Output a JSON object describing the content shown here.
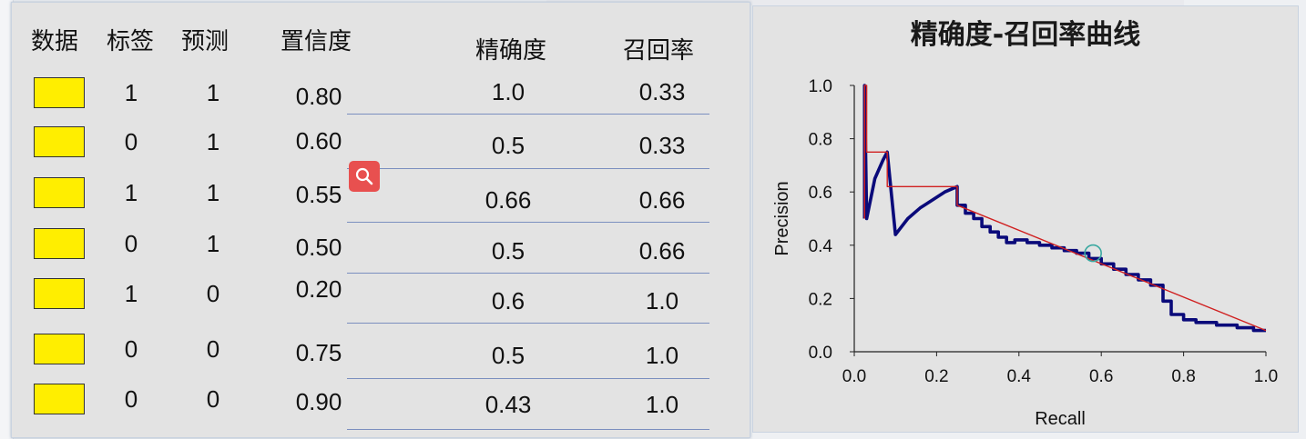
{
  "table": {
    "headers": [
      "数据",
      "标签",
      "预测",
      "置信度",
      "精确度",
      "召回率"
    ],
    "rows": [
      {
        "label": "1",
        "pred": "1",
        "conf": "0.80",
        "precision": "1.0",
        "recall": "0.33"
      },
      {
        "label": "0",
        "pred": "1",
        "conf": "0.60",
        "precision": "0.5",
        "recall": "0.33"
      },
      {
        "label": "1",
        "pred": "1",
        "conf": "0.55",
        "precision": "0.66",
        "recall": "0.66"
      },
      {
        "label": "0",
        "pred": "1",
        "conf": "0.50",
        "precision": "0.5",
        "recall": "0.66"
      },
      {
        "label": "1",
        "pred": "0",
        "conf": "0.20",
        "precision": "0.6",
        "recall": "1.0"
      },
      {
        "label": "0",
        "pred": "0",
        "conf": "0.75",
        "precision": "0.5",
        "recall": "1.0"
      },
      {
        "label": "0",
        "pred": "0",
        "conf": "0.90",
        "precision": "0.43",
        "recall": "1.0"
      }
    ],
    "swatch_color": "#ffee00"
  },
  "zoom_icon": "search-icon",
  "chart_data": {
    "type": "line",
    "title": "精确度-召回率曲线",
    "xlabel": "Recall",
    "ylabel": "Precision",
    "xlim": [
      0,
      1
    ],
    "ylim": [
      0,
      1
    ],
    "x_ticks": [
      "0.0",
      "0.2",
      "0.4",
      "0.6",
      "0.8",
      "1.0"
    ],
    "y_ticks": [
      "0.0",
      "0.2",
      "0.4",
      "0.6",
      "0.8",
      "1.0"
    ],
    "grid": false,
    "series": [
      {
        "color": "#0a0a7a",
        "x": [
          0.025,
          0.025,
          0.03,
          0.05,
          0.07,
          0.08,
          0.1,
          0.13,
          0.16,
          0.19,
          0.22,
          0.25,
          0.25,
          0.27,
          0.27,
          0.29,
          0.29,
          0.31,
          0.31,
          0.33,
          0.33,
          0.35,
          0.35,
          0.37,
          0.37,
          0.39,
          0.39,
          0.42,
          0.42,
          0.45,
          0.45,
          0.48,
          0.48,
          0.51,
          0.51,
          0.54,
          0.54,
          0.57,
          0.57,
          0.6,
          0.6,
          0.63,
          0.63,
          0.66,
          0.66,
          0.69,
          0.69,
          0.72,
          0.72,
          0.75,
          0.75,
          0.77,
          0.77,
          0.8,
          0.8,
          0.83,
          0.83,
          0.88,
          0.88,
          0.93,
          0.93,
          0.97,
          0.97,
          1.0
        ],
        "y": [
          0.5,
          1.0,
          0.5,
          0.65,
          0.72,
          0.75,
          0.44,
          0.5,
          0.54,
          0.57,
          0.6,
          0.62,
          0.55,
          0.55,
          0.52,
          0.52,
          0.5,
          0.5,
          0.47,
          0.47,
          0.45,
          0.45,
          0.43,
          0.43,
          0.41,
          0.41,
          0.42,
          0.42,
          0.41,
          0.41,
          0.4,
          0.4,
          0.39,
          0.39,
          0.38,
          0.38,
          0.37,
          0.37,
          0.35,
          0.35,
          0.33,
          0.33,
          0.31,
          0.31,
          0.29,
          0.29,
          0.27,
          0.27,
          0.25,
          0.25,
          0.19,
          0.19,
          0.14,
          0.14,
          0.12,
          0.12,
          0.11,
          0.11,
          0.1,
          0.1,
          0.09,
          0.09,
          0.08,
          0.08
        ]
      },
      {
        "color": "#d02020",
        "x": [
          0.025,
          0.025,
          0.03,
          0.03,
          0.08,
          0.08,
          0.25,
          0.25,
          1.0
        ],
        "y": [
          0.5,
          1.0,
          1.0,
          0.75,
          0.75,
          0.62,
          0.62,
          0.55,
          0.08
        ]
      }
    ],
    "marker": {
      "x": 0.58,
      "y": 0.37,
      "color": "#3aa8a0"
    }
  }
}
